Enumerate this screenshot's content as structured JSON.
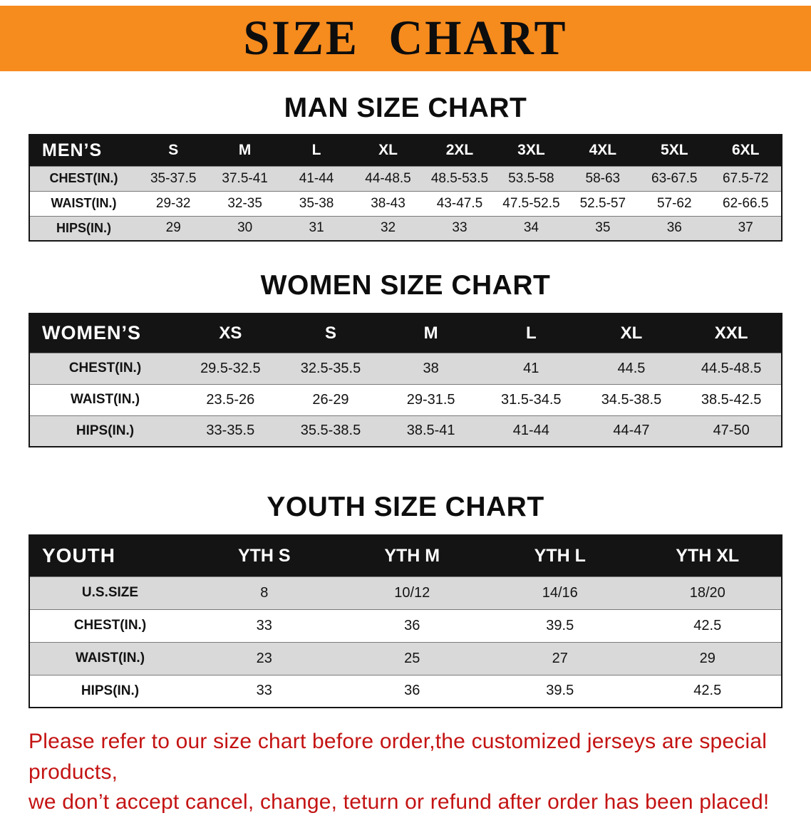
{
  "banner": {
    "title": "SIZE CHART",
    "bg_color": "#f68b1e",
    "text_color": "#0d0d0d"
  },
  "chart_data": [
    {
      "type": "table",
      "title": "MAN SIZE CHART",
      "header": [
        "MEN’S",
        "S",
        "M",
        "L",
        "XL",
        "2XL",
        "3XL",
        "4XL",
        "5XL",
        "6XL"
      ],
      "rows": [
        [
          "CHEST(IN.)",
          "35-37.5",
          "37.5-41",
          "41-44",
          "44-48.5",
          "48.5-53.5",
          "53.5-58",
          "58-63",
          "63-67.5",
          "67.5-72"
        ],
        [
          "WAIST(IN.)",
          "29-32",
          "32-35",
          "35-38",
          "38-43",
          "43-47.5",
          "47.5-52.5",
          "52.5-57",
          "57-62",
          "62-66.5"
        ],
        [
          "HIPS(IN.)",
          "29",
          "30",
          "31",
          "32",
          "33",
          "34",
          "35",
          "36",
          "37"
        ]
      ]
    },
    {
      "type": "table",
      "title": "WOMEN SIZE CHART",
      "header": [
        "WOMEN’S",
        "XS",
        "S",
        "M",
        "L",
        "XL",
        "XXL"
      ],
      "rows": [
        [
          "CHEST(IN.)",
          "29.5-32.5",
          "32.5-35.5",
          "38",
          "41",
          "44.5",
          "44.5-48.5"
        ],
        [
          "WAIST(IN.)",
          "23.5-26",
          "26-29",
          "29-31.5",
          "31.5-34.5",
          "34.5-38.5",
          "38.5-42.5"
        ],
        [
          "HIPS(IN.)",
          "33-35.5",
          "35.5-38.5",
          "38.5-41",
          "41-44",
          "44-47",
          "47-50"
        ]
      ]
    },
    {
      "type": "table",
      "title": "YOUTH SIZE CHART",
      "header": [
        "YOUTH",
        "YTH S",
        "YTH M",
        "YTH L",
        "YTH XL"
      ],
      "rows": [
        [
          "U.S.SIZE",
          "8",
          "10/12",
          "14/16",
          "18/20"
        ],
        [
          "CHEST(IN.)",
          "33",
          "36",
          "39.5",
          "42.5"
        ],
        [
          "WAIST(IN.)",
          "23",
          "25",
          "27",
          "29"
        ],
        [
          "HIPS(IN.)",
          "33",
          "36",
          "39.5",
          "42.5"
        ]
      ]
    }
  ],
  "disclaimer": {
    "lines": [
      "Please refer to our size chart before order,the customized jerseys are special products,",
      "we don’t accept cancel, change, teturn or refund after order has been placed!"
    ],
    "color": "#c41313"
  }
}
